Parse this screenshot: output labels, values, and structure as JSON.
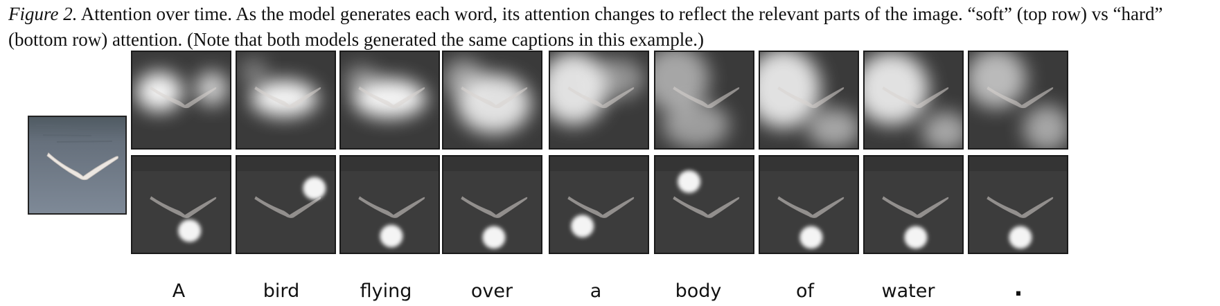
{
  "caption": {
    "label": "Figure 2.",
    "text": " Attention over time.  As the model generates each word, its attention changes to reflect the relevant parts of the image. “soft” (top row) vs “hard” (bottom row) attention. (Note that both models generated the same captions in this example.)"
  },
  "rows": {
    "top": "soft",
    "bottom": "hard"
  },
  "words": [
    "A",
    "bird",
    "flying",
    "over",
    "a",
    "body",
    "of",
    "water",
    "."
  ],
  "colors": {
    "water": "#6f7a86",
    "dark_panel": "#3c3c3c",
    "bird": "#e6e1dc",
    "border": "#1a1a1a"
  }
}
